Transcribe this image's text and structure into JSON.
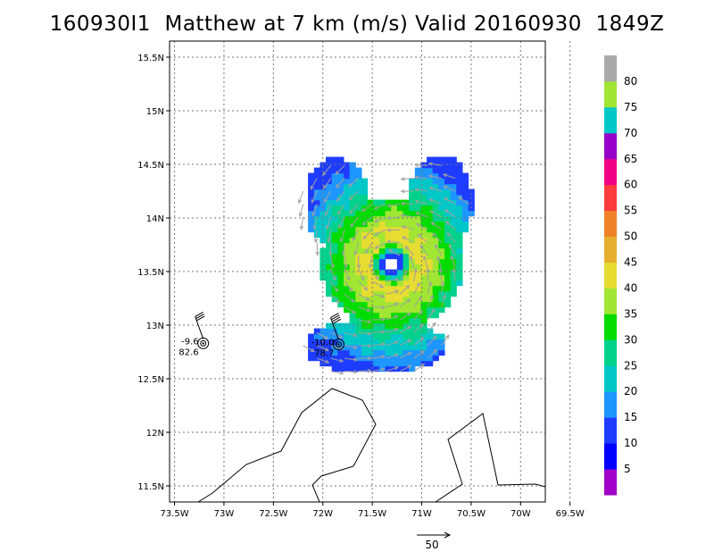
{
  "title": "160930I1  Matthew at 7 km (m/s) Valid 20160930  1849Z",
  "map": {
    "lat_range": [
      11.35,
      15.65
    ],
    "lon_range": [
      -73.55,
      -69.75
    ],
    "lat_ticks": [
      {
        "value": 15.5,
        "label": "15.5N"
      },
      {
        "value": 15.0,
        "label": "15N"
      },
      {
        "value": 14.5,
        "label": "14.5N"
      },
      {
        "value": 14.0,
        "label": "14N"
      },
      {
        "value": 13.5,
        "label": "13.5N"
      },
      {
        "value": 13.0,
        "label": "13N"
      },
      {
        "value": 12.5,
        "label": "12.5N"
      },
      {
        "value": 12.0,
        "label": "12N"
      },
      {
        "value": 11.5,
        "label": "11.5N"
      }
    ],
    "lon_ticks": [
      {
        "value": -73.5,
        "label": "73.5W"
      },
      {
        "value": -73.0,
        "label": "73W"
      },
      {
        "value": -72.5,
        "label": "72.5W"
      },
      {
        "value": -72.0,
        "label": "72W"
      },
      {
        "value": -71.5,
        "label": "71.5W"
      },
      {
        "value": -71.0,
        "label": "71W"
      },
      {
        "value": -70.5,
        "label": "70.5W"
      },
      {
        "value": -70.0,
        "label": "70W"
      },
      {
        "value": -69.5,
        "label": "69.5W"
      }
    ],
    "grid": true,
    "storm_center": {
      "lat": 13.55,
      "lon": -71.33
    }
  },
  "stations": [
    {
      "lat": 12.83,
      "lon": -73.21,
      "temp": "-9.6",
      "value": "82.6"
    },
    {
      "lat": 12.82,
      "lon": -71.84,
      "temp": "-10.0",
      "value": "78.7"
    }
  ],
  "colorbar": {
    "levels": [
      5,
      10,
      15,
      20,
      25,
      30,
      35,
      40,
      45,
      50,
      55,
      60,
      65,
      70,
      75,
      80
    ],
    "labels": [
      "5",
      "10",
      "15",
      "20",
      "25",
      "30",
      "35",
      "40",
      "45",
      "50",
      "55",
      "60",
      "65",
      "70",
      "75",
      "80"
    ],
    "colors": [
      "#a000c8",
      "#0000ff",
      "#1e3cff",
      "#1e96ff",
      "#00c8c8",
      "#00d28c",
      "#00dc00",
      "#a0e632",
      "#e6dc32",
      "#e6af2d",
      "#f08228",
      "#fa3c3c",
      "#f00082",
      "#9600c8",
      "#00c8c8",
      "#a0e632",
      "#aaaaaa"
    ]
  },
  "vector_key": {
    "label": "50"
  },
  "icons": {
    "station_marker": "circled-dot-icon",
    "wind_barb": "wind-barb-icon"
  }
}
